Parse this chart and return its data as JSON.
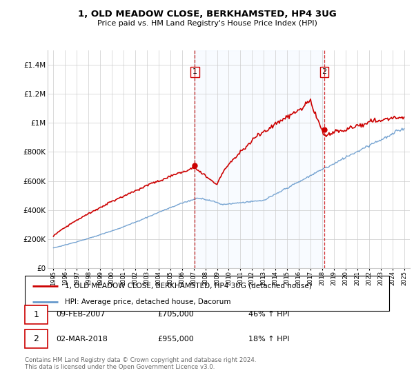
{
  "title": "1, OLD MEADOW CLOSE, BERKHAMSTED, HP4 3UG",
  "subtitle": "Price paid vs. HM Land Registry's House Price Index (HPI)",
  "legend_line1": "1, OLD MEADOW CLOSE, BERKHAMSTED, HP4 3UG (detached house)",
  "legend_line2": "HPI: Average price, detached house, Dacorum",
  "sale1_date": "09-FEB-2007",
  "sale1_price": "£705,000",
  "sale1_hpi": "46% ↑ HPI",
  "sale2_date": "02-MAR-2018",
  "sale2_price": "£955,000",
  "sale2_hpi": "18% ↑ HPI",
  "footer": "Contains HM Land Registry data © Crown copyright and database right 2024.\nThis data is licensed under the Open Government Licence v3.0.",
  "price_color": "#cc0000",
  "hpi_color": "#6699cc",
  "shade_color": "#ddeeff",
  "vline_color": "#cc0000",
  "ylim": [
    0,
    1500000
  ],
  "yticks": [
    0,
    200000,
    400000,
    600000,
    800000,
    1000000,
    1200000,
    1400000
  ],
  "sale1_x": 2007.1,
  "sale1_y": 705000,
  "sale2_x": 2018.17,
  "sale2_y": 955000,
  "xmin": 1994.5,
  "xmax": 2025.5
}
